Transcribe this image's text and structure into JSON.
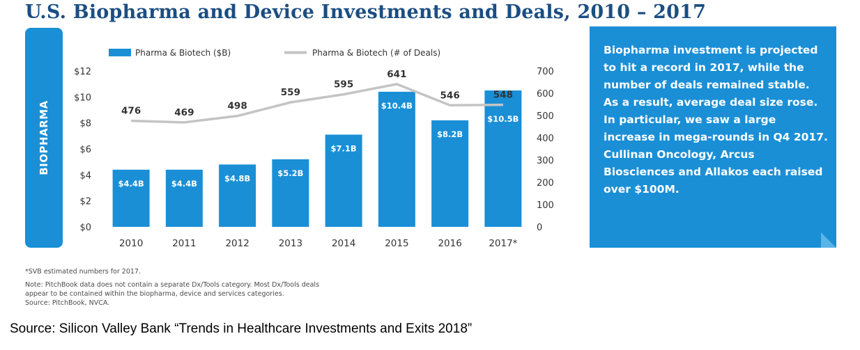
{
  "title": "U.S. Biopharma and Device Investments and Deals, 2010 – 2017",
  "side_label": "BIOPHARMA",
  "colors": {
    "bar": "#1a8fd6",
    "line": "#c4c4c4",
    "title": "#1b4e82",
    "callout_bg": "#1a8fd6"
  },
  "callout_text": "Biopharma investment is projected to hit a record in 2017, while the number of deals remained stable. As a result, average deal size rose. In particular, we saw a large increase in mega-rounds in Q4 2017. Cullinan Oncology, Arcus Biosciences and Allakos each raised over $100M.",
  "notes": {
    "estimate": "*SVB estimated numbers for 2017.",
    "note_line1": "Note: PitchBook data does not contain a separate Dx/Tools category. Most Dx/Tools deals",
    "note_line2": "appear to be contained within the biopharma, device and services categories.",
    "source": "Source: PitchBook, NVCA."
  },
  "source": "Source: Silicon Valley Bank “Trends in Healthcare Investments and Exits 2018”",
  "chart_data": {
    "type": "bar",
    "categories": [
      "2010",
      "2011",
      "2012",
      "2013",
      "2014",
      "2015",
      "2016",
      "2017*"
    ],
    "series": [
      {
        "name": "Pharma & Biotech ($B)",
        "type": "bar",
        "axis": "left",
        "values": [
          4.4,
          4.4,
          4.8,
          5.2,
          7.1,
          10.4,
          8.2,
          10.5
        ],
        "labels": [
          "$4.4B",
          "$4.4B",
          "$4.8B",
          "$5.2B",
          "$7.1B",
          "$10.4B",
          "$8.2B",
          "$10.5B"
        ]
      },
      {
        "name": "Pharma & Biotech (# of Deals)",
        "type": "line",
        "axis": "right",
        "values": [
          476,
          469,
          498,
          559,
          595,
          641,
          546,
          548
        ]
      }
    ],
    "y_left": {
      "min": 0,
      "max": 12,
      "ticks": [
        "$0",
        "$2",
        "$4",
        "$6",
        "$8",
        "$10",
        "$12"
      ]
    },
    "y_right": {
      "min": 0,
      "max": 700,
      "ticks": [
        "0",
        "100",
        "200",
        "300",
        "400",
        "500",
        "600",
        "700"
      ]
    },
    "grid": false,
    "legend": "top"
  }
}
